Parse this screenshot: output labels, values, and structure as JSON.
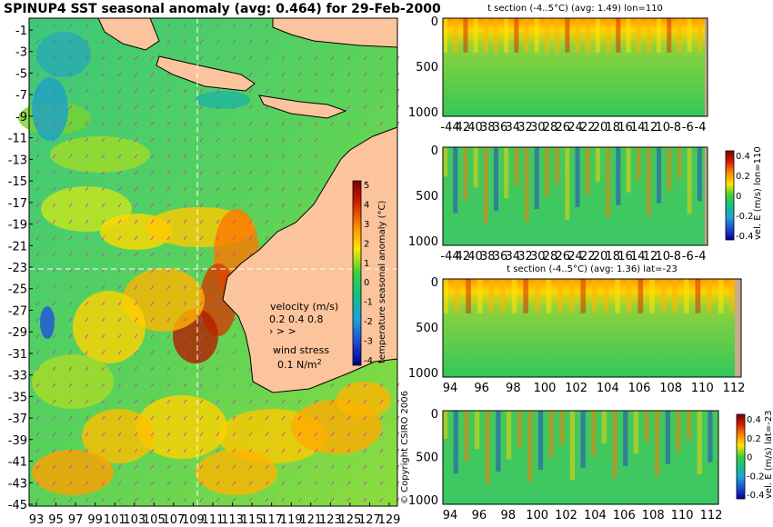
{
  "map": {
    "title": "SPINUP4 SST seasonal anomaly (avg: 0.464) for 29-Feb-2000",
    "lat_labels": [
      "-1",
      "-3",
      "-5",
      "-7",
      "-9",
      "-11",
      "-13",
      "-15",
      "-17",
      "-19",
      "-21",
      "-23",
      "-25",
      "-27",
      "-29",
      "-31",
      "-33",
      "-35",
      "-37",
      "-39",
      "-41",
      "-43",
      "-45"
    ],
    "lon_labels": [
      "93",
      "95",
      "97",
      "99",
      "101",
      "103",
      "105",
      "107",
      "109",
      "111",
      "113",
      "115",
      "117",
      "119",
      "121",
      "123",
      "125",
      "127",
      "129"
    ],
    "colorbar": {
      "label": "temperature seasonal anomaly (°C)",
      "ticks": [
        "5",
        "4",
        "3",
        "2",
        "1",
        "0",
        "-1",
        "-2",
        "-3",
        "-4"
      ],
      "colors": [
        "#7a0000",
        "#c81400",
        "#ff4b00",
        "#ffa000",
        "#ffe600",
        "#a8e61e",
        "#1ec85a",
        "#14b4a0",
        "#1e64e6",
        "#0000a0"
      ]
    },
    "velocity_legend": {
      "title": "velocity (m/s)",
      "scale": "0.2 0.4 0.8"
    },
    "wind_legend": {
      "title": "wind stress",
      "value": "0.1 N/m",
      "superscript": "2"
    },
    "copyright": "© Copyright CSIRO 2006"
  },
  "panels": [
    {
      "id": "t-section-lon",
      "title": "t section (-4..5°C) (avg: 1.49) lon=110",
      "y_ticks": [
        "0",
        "500",
        "1000"
      ],
      "x_ticks": [
        "-44",
        "42",
        "40",
        "38",
        "36",
        "34",
        "32",
        "30",
        "28",
        "26",
        "24",
        "22",
        "20",
        "18",
        "16",
        "14",
        "12",
        "10",
        "-8",
        "-6",
        "-4"
      ],
      "colorbar": null
    },
    {
      "id": "vel-section-lon",
      "title": "",
      "y_ticks": [
        "0",
        "500",
        "1000"
      ],
      "x_ticks": [
        "-44",
        "42",
        "40",
        "38",
        "36",
        "34",
        "32",
        "30",
        "28",
        "26",
        "24",
        "22",
        "20",
        "18",
        "16",
        "14",
        "12",
        "10",
        "-8",
        "-6",
        "-4"
      ],
      "colorbar": {
        "label": "vel. E (m/s) lon=110",
        "ticks": [
          "0.4",
          "0.2",
          "0",
          "-0.2",
          "-0.4"
        ]
      }
    },
    {
      "id": "t-section-lat",
      "title": "t section (-4..5°C) (avg: 1.36) lat=-23",
      "y_ticks": [
        "0",
        "500",
        "1000"
      ],
      "x_ticks": [
        "94",
        "96",
        "98",
        "100",
        "102",
        "104",
        "106",
        "108",
        "110",
        "112"
      ],
      "colorbar": null
    },
    {
      "id": "vel-section-lat",
      "title": "",
      "y_ticks": [
        "0",
        "500",
        "1000"
      ],
      "x_ticks": [
        "94",
        "96",
        "98",
        "100",
        "102",
        "104",
        "106",
        "108",
        "110",
        "112"
      ],
      "colorbar": {
        "label": "vel. E (m/s) lat=-23",
        "ticks": [
          "0.4",
          "0.2",
          "0",
          "-0.2",
          "-0.4"
        ]
      }
    }
  ]
}
